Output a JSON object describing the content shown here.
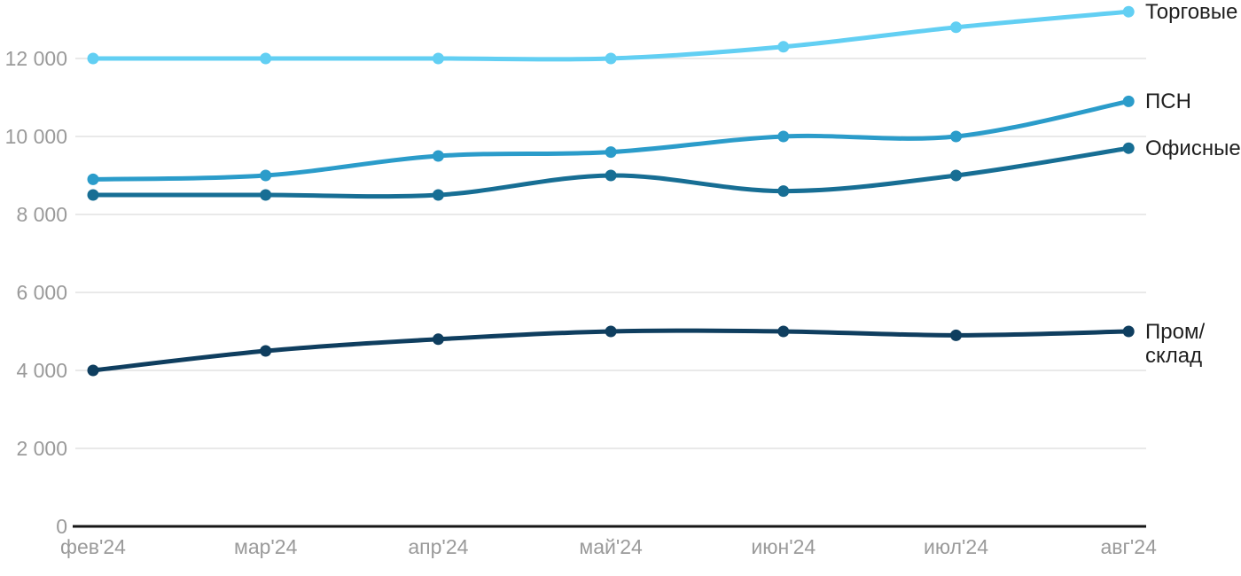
{
  "chart_data": {
    "type": "line",
    "title": "",
    "xlabel": "",
    "ylabel": "",
    "categories": [
      "фев'24",
      "мар'24",
      "апр'24",
      "май'24",
      "июн'24",
      "июл'24",
      "авг'24"
    ],
    "y_tick_values": [
      0,
      2000,
      4000,
      6000,
      8000,
      10000,
      12000
    ],
    "y_tick_labels": [
      "0",
      "2 000",
      "4 000",
      "6 000",
      "8 000",
      "10 000",
      "12 000"
    ],
    "ylim": [
      0,
      13450
    ],
    "grid": "horizontal",
    "legend_position": "right-of-line-end",
    "series": [
      {
        "name": "Торговые",
        "label_line1": "Торговые",
        "label_line2": "",
        "color": "#62CFF3",
        "values": [
          12000,
          12000,
          12000,
          12000,
          12300,
          12800,
          13200
        ]
      },
      {
        "name": "ПСН",
        "label_line1": "ПСН",
        "label_line2": "",
        "color": "#2B9CCA",
        "values": [
          8900,
          9000,
          9500,
          9600,
          10000,
          10000,
          10900
        ]
      },
      {
        "name": "Офисные",
        "label_line1": "Офисные",
        "label_line2": "",
        "color": "#176E94",
        "values": [
          8500,
          8500,
          8500,
          9000,
          8600,
          9000,
          9700
        ]
      },
      {
        "name": "Пром/склад",
        "label_line1": "Пром/",
        "label_line2": "склад",
        "color": "#0F3E5F",
        "values": [
          4000,
          4500,
          4800,
          5000,
          5000,
          4900,
          5000
        ]
      }
    ],
    "colors": {
      "background": "#FFFFFF",
      "grid": "#E9E9E9",
      "axis": "#161616",
      "tick_label": "#9A9A9A",
      "legend_text": "#1F1F1F"
    }
  }
}
